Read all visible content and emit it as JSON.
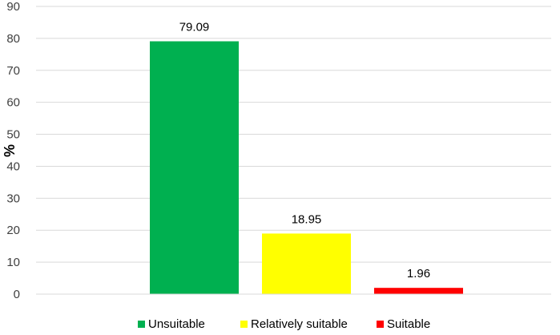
{
  "chart_data": {
    "type": "bar",
    "title": "",
    "xlabel": "",
    "ylabel": "%",
    "ylim": [
      0,
      90
    ],
    "yticks": [
      0,
      10,
      20,
      30,
      40,
      50,
      60,
      70,
      80,
      90
    ],
    "grid": true,
    "legend_position": "bottom",
    "series": [
      {
        "name": "Unsuitable",
        "value": 79.09,
        "label": "79.09",
        "color": "#00B050"
      },
      {
        "name": "Relatively suitable",
        "value": 18.95,
        "label": "18.95",
        "color": "#FFFF00"
      },
      {
        "name": "Suitable",
        "value": 1.96,
        "label": "1.96",
        "color": "#FF0000"
      }
    ]
  }
}
